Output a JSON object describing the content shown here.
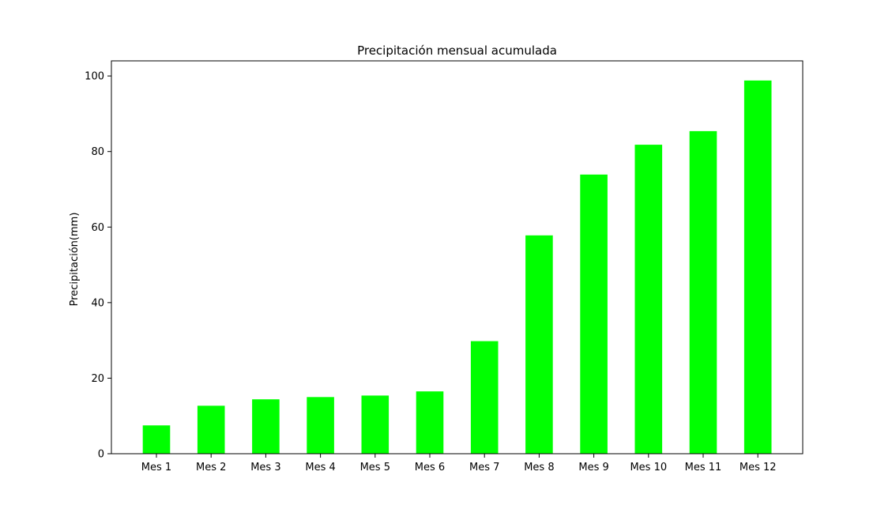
{
  "chart_data": {
    "type": "bar",
    "title": "Precipitación mensual acumulada",
    "xlabel": "",
    "ylabel": "Precipitación(mm)",
    "categories": [
      "Mes 1",
      "Mes 2",
      "Mes 3",
      "Mes 4",
      "Mes 5",
      "Mes 6",
      "Mes 7",
      "Mes 8",
      "Mes 9",
      "Mes 10",
      "Mes 11",
      "Mes 12"
    ],
    "values": [
      7.5,
      12.7,
      14.4,
      15.0,
      15.4,
      16.5,
      29.8,
      57.8,
      73.9,
      81.8,
      85.4,
      98.8
    ],
    "ylim": [
      0,
      104
    ],
    "yticks": [
      0,
      20,
      40,
      60,
      80,
      100
    ],
    "grid": false,
    "legend": "none",
    "bar_color": "#00ff00"
  }
}
